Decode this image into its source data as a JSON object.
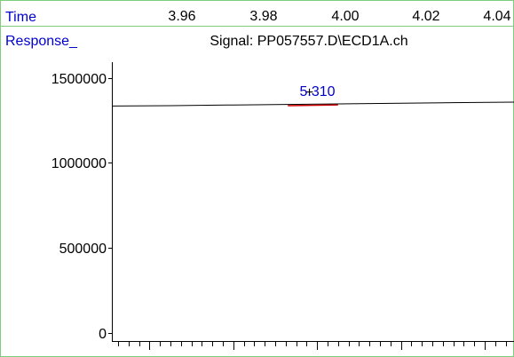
{
  "colors": {
    "trace": "#000000",
    "peak": "#cc0000",
    "label_blue": "#0000cc",
    "frame": "#7ccd7c",
    "axis": "#000000"
  },
  "chart_data": {
    "type": "line",
    "title": "Signal: PP057557.D\\ECD1A.ch",
    "xlabel": "Time",
    "ylabel": "Response_",
    "x_range": [
      3.951,
      4.047
    ],
    "ylim": [
      0,
      1650000
    ],
    "x_ticks": [
      "3.96",
      "3.98",
      "4.00",
      "4.02",
      "4.04"
    ],
    "y_ticks": [
      "1500000",
      "1000000",
      "500000",
      "0"
    ],
    "grid": false,
    "series": [
      {
        "x": [
          3.951,
          3.965,
          3.98,
          3.99,
          4.0,
          4.01,
          4.02,
          4.03,
          4.047
        ],
        "y": [
          1334000,
          1336000,
          1340000,
          1342000,
          1345000,
          1348000,
          1350000,
          1353000,
          1357000
        ]
      }
    ],
    "peak": {
      "label": "5.310",
      "x": 3.999,
      "segment_x": [
        3.993,
        4.005
      ],
      "segment_y": [
        1341000,
        1346000
      ]
    }
  }
}
